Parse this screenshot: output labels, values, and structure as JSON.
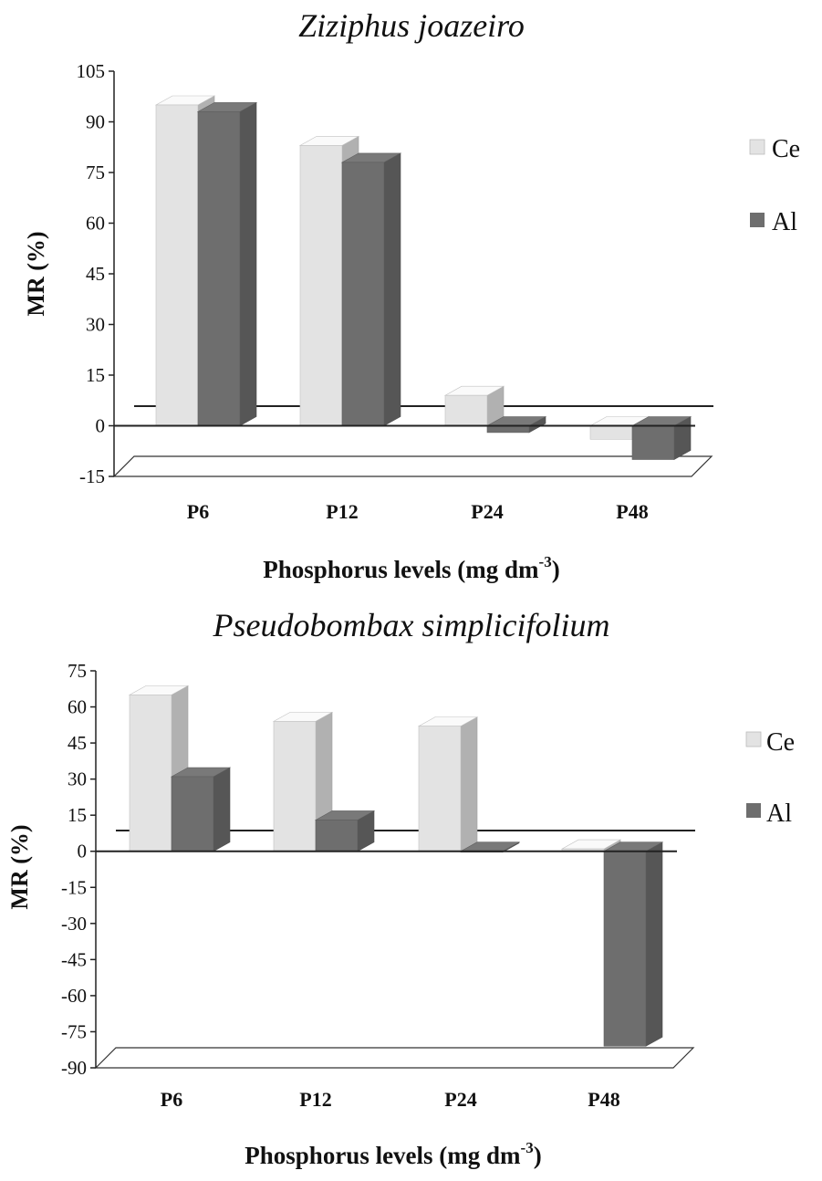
{
  "chart_data": [
    {
      "type": "bar",
      "title": "Ziziphus joazeiro",
      "ylabel": "MR (%)",
      "xlabel": "Phosphorus levels (mg dm",
      "xlabel_sup": "-3",
      "xlabel_end": ")",
      "categories": [
        "P6",
        "P12",
        "P24",
        "P48"
      ],
      "ylim": [
        -15,
        105
      ],
      "yticks": [
        105,
        90,
        75,
        60,
        45,
        30,
        15,
        0,
        -15
      ],
      "legend_position": "right",
      "series": [
        {
          "name": "Ce",
          "color": "#e3e3e3",
          "values": [
            95,
            83,
            9,
            -4
          ]
        },
        {
          "name": "Al",
          "color": "#6e6e6e",
          "values": [
            93,
            78,
            -2,
            -10
          ]
        }
      ]
    },
    {
      "type": "bar",
      "title": "Pseudobombax simplicifolium",
      "ylabel": "MR (%)",
      "xlabel": "Phosphorus levels (mg dm",
      "xlabel_sup": "-3",
      "xlabel_end": ")",
      "categories": [
        "P6",
        "P12",
        "P24",
        "P48"
      ],
      "ylim": [
        -90,
        75
      ],
      "yticks": [
        75,
        60,
        45,
        30,
        15,
        0,
        -15,
        -30,
        -45,
        -60,
        -75,
        -90
      ],
      "legend_position": "right",
      "series": [
        {
          "name": "Ce",
          "color": "#e3e3e3",
          "values": [
            65,
            54,
            52,
            1
          ]
        },
        {
          "name": "Al",
          "color": "#6e6e6e",
          "values": [
            31,
            13,
            0,
            -81
          ]
        }
      ]
    }
  ]
}
